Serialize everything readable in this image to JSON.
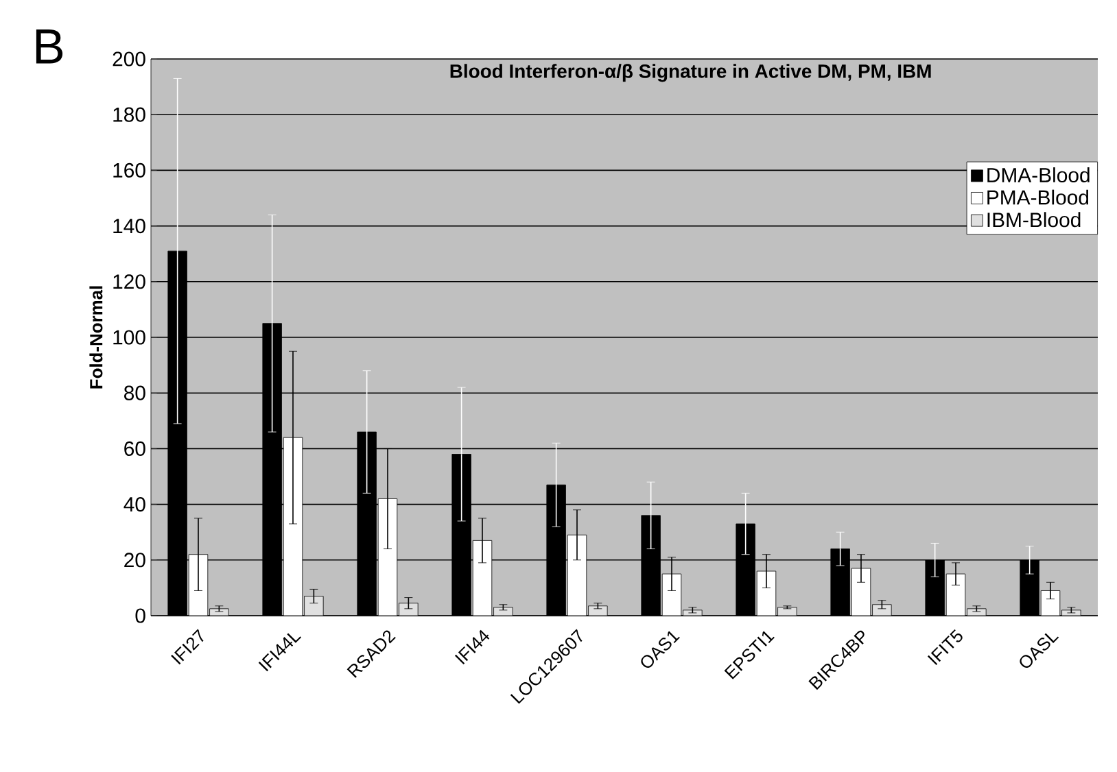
{
  "chart_data": {
    "type": "bar",
    "title": "Blood Interferon-α/β Signature in Active DM, PM, IBM",
    "ylabel": "Fold-Normal",
    "categories": [
      "IFI27",
      "IFI44L",
      "RSAD2",
      "IFI44",
      "LOC129607",
      "OAS1",
      "EPSTI1",
      "BIRC4BP",
      "IFIT5",
      "OASL"
    ],
    "series": [
      {
        "name": "DMA-Blood",
        "color": "#000000",
        "values": [
          131,
          105,
          66,
          58,
          47,
          36,
          33,
          24,
          20,
          20
        ],
        "errors": [
          62,
          39,
          22,
          24,
          15,
          12,
          11,
          6,
          6,
          5
        ]
      },
      {
        "name": "PMA-Blood",
        "color": "#ffffff",
        "values": [
          22,
          64,
          42,
          27,
          29,
          15,
          16,
          17,
          15,
          9
        ],
        "errors": [
          13,
          31,
          18,
          8,
          9,
          6,
          6,
          5,
          4,
          3
        ]
      },
      {
        "name": "IBM-Blood",
        "color": "#e0e0e0",
        "values": [
          2.5,
          7,
          4.5,
          3,
          3.5,
          2,
          3,
          4,
          2.5,
          2
        ],
        "errors": [
          1,
          2.5,
          2,
          1,
          1,
          1,
          0.5,
          1.5,
          1,
          1
        ]
      }
    ],
    "ylim": [
      0,
      200
    ],
    "yticks": [
      0,
      20,
      40,
      60,
      80,
      100,
      120,
      140,
      160,
      180,
      200
    ],
    "grid": "y",
    "legend": "right",
    "annotations": [
      "B"
    ]
  }
}
